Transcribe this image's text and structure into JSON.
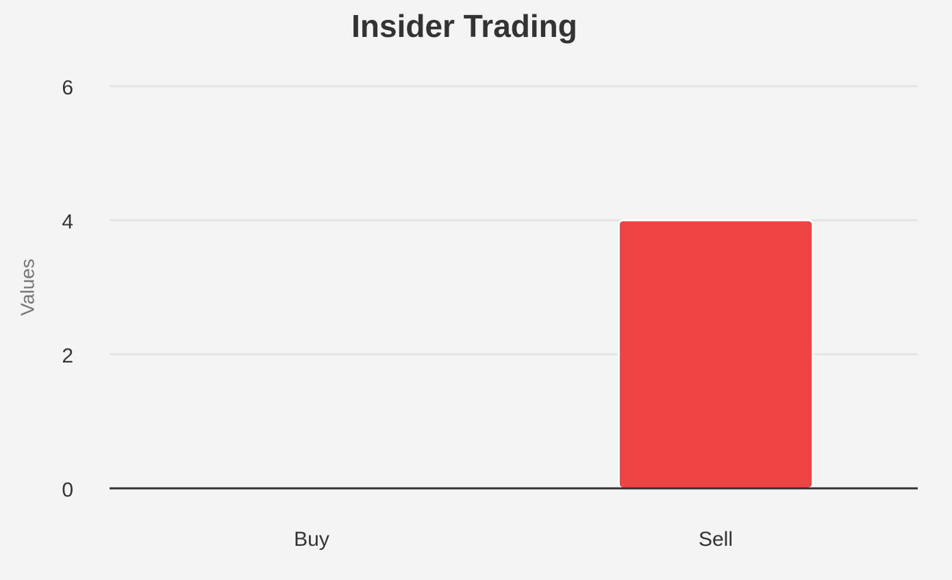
{
  "chart_data": {
    "type": "bar",
    "title": "Insider Trading",
    "y_label": "Values",
    "categories": [
      "Buy",
      "Sell"
    ],
    "values": [
      0,
      4
    ],
    "color": "#ef4444",
    "ylim": [
      0,
      6
    ],
    "yticks": [
      0,
      2,
      4,
      6
    ],
    "grid": true
  }
}
